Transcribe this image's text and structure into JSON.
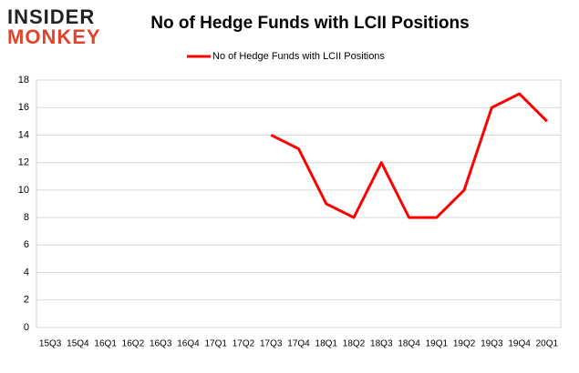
{
  "logo": {
    "line1": "INSIDER",
    "line2": "MONKEY"
  },
  "chart_data": {
    "type": "line",
    "title": "No of Hedge Funds with LCII Positions",
    "categories": [
      "15Q3",
      "15Q4",
      "16Q1",
      "16Q2",
      "16Q3",
      "16Q4",
      "17Q1",
      "17Q2",
      "17Q3",
      "17Q4",
      "18Q1",
      "18Q2",
      "18Q3",
      "18Q4",
      "19Q1",
      "19Q2",
      "19Q3",
      "19Q4",
      "20Q1"
    ],
    "series": [
      {
        "name": "No of Hedge Funds with LCII Positions",
        "color": "#ff0000",
        "values": [
          null,
          null,
          null,
          null,
          null,
          null,
          null,
          null,
          14,
          13,
          9,
          8,
          12,
          8,
          8,
          10,
          16,
          17,
          15
        ]
      }
    ],
    "ylim": [
      0,
      18
    ],
    "yticks": [
      0,
      2,
      4,
      6,
      8,
      10,
      12,
      14,
      16,
      18
    ],
    "grid": true,
    "legend": "top"
  }
}
